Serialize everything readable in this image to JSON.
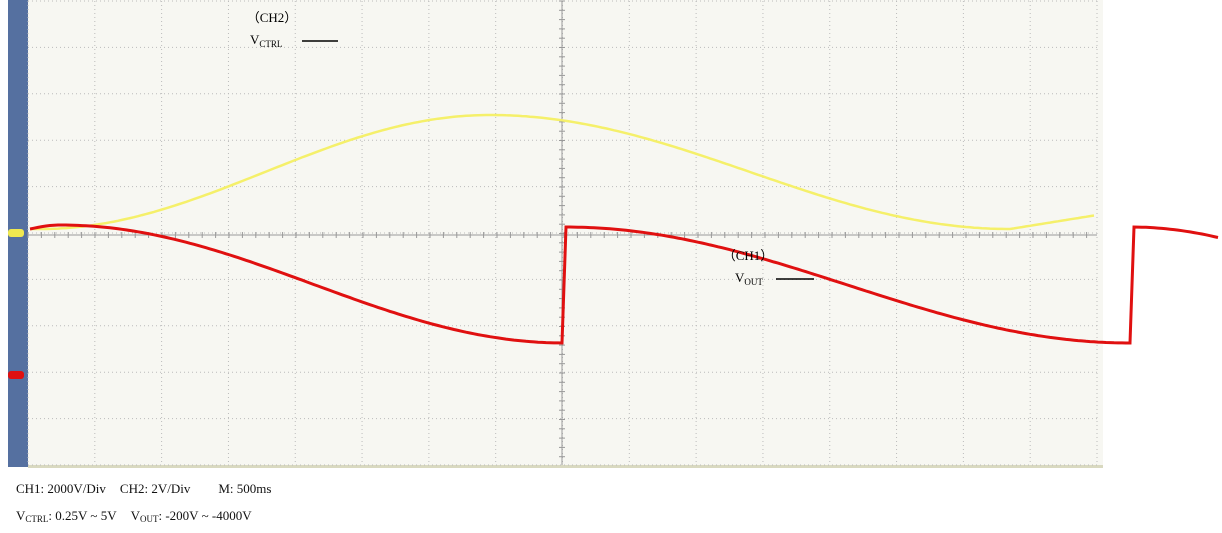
{
  "screen": {
    "ch2_label": "（CH2）",
    "ch2_symbol": "V",
    "ch2_subscript": "CTRL",
    "ch1_label": "（CH1）",
    "ch1_symbol": "V",
    "ch1_subscript": "OUT"
  },
  "footer": {
    "line1": [
      "CH1: 2000V/Div",
      "CH2: 2V/Div",
      "M: 500ms"
    ],
    "line2": [
      {
        "symbol": "V",
        "subscript": "CTRL",
        "text": ": 0.25V ~ 5V"
      },
      {
        "symbol": "V",
        "subscript": "OUT",
        "text": ": -200V ~ -4000V"
      }
    ]
  }
}
